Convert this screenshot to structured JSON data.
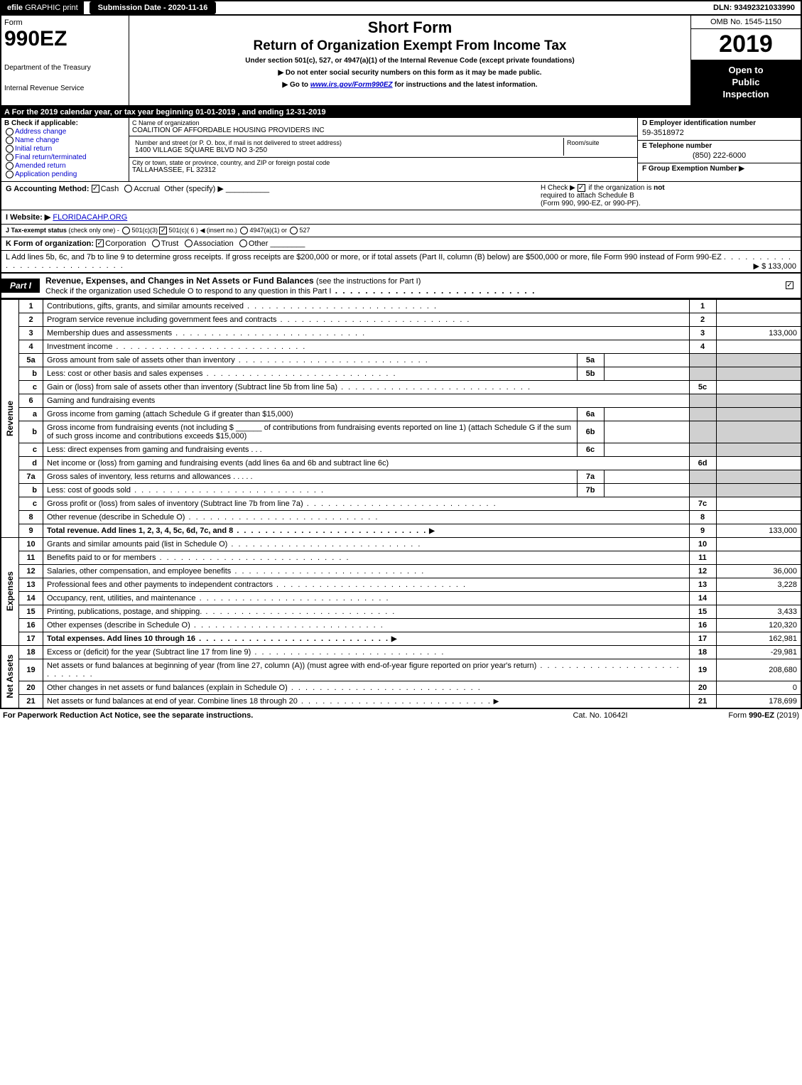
{
  "top": {
    "efile_prefix": "efile",
    "efile_rest": " GRAPHIC print",
    "submission": "Submission Date - 2020-11-16",
    "dln": "DLN: 93492321033990"
  },
  "header": {
    "form_word": "Form",
    "form_num": "990EZ",
    "dept1": "Department of the Treasury",
    "dept2": "Internal Revenue Service",
    "title1": "Short Form",
    "title2": "Return of Organization Exempt From Income Tax",
    "sub1": "Under section 501(c), 527, or 4947(a)(1) of the Internal Revenue Code (except private foundations)",
    "sub2": "▶ Do not enter social security numbers on this form as it may be made public.",
    "sub3_pre": "▶ Go to ",
    "sub3_link": "www.irs.gov/Form990EZ",
    "sub3_post": " for instructions and the latest information.",
    "omb": "OMB No. 1545-1150",
    "year": "2019",
    "open1": "Open to",
    "open2": "Public",
    "open3": "Inspection"
  },
  "A": {
    "text": "A For the 2019 calendar year, or tax year beginning 01-01-2019 , and ending 12-31-2019"
  },
  "B": {
    "label": "B Check if applicable:",
    "opts": [
      "Address change",
      "Name change",
      "Initial return",
      "Final return/terminated",
      "Amended return",
      "Application pending"
    ]
  },
  "C": {
    "name_lbl": "C Name of organization",
    "name": "COALITION OF AFFORDABLE HOUSING PROVIDERS INC",
    "addr_lbl": "Number and street (or P. O. box, if mail is not delivered to street address)",
    "room_lbl": "Room/suite",
    "addr": "1400 VILLAGE SQUARE BLVD NO 3-250",
    "city_lbl": "City or town, state or province, country, and ZIP or foreign postal code",
    "city": "TALLAHASSEE, FL  32312"
  },
  "D": {
    "ein_lbl": "D Employer identification number",
    "ein": "59-3518972",
    "phone_lbl": "E Telephone number",
    "phone": "(850) 222-6000",
    "group_lbl": "F Group Exemption Number  ▶"
  },
  "G": {
    "label": "G Accounting Method:",
    "cash": "Cash",
    "accrual": "Accrual",
    "other": "Other (specify) ▶"
  },
  "H": {
    "pre": "H  Check ▶ ",
    "post": " if the organization is ",
    "not": "not",
    "line2": "required to attach Schedule B",
    "line3": "(Form 990, 990-EZ, or 990-PF)."
  },
  "I": {
    "label": "I Website: ▶",
    "url": "FLORIDACAHP.ORG"
  },
  "J": {
    "label": "J Tax-exempt status",
    "sub": "(check only one) -",
    "o1": "501(c)(3)",
    "o2": "501(c)( 6 ) ◀ (insert no.)",
    "o3": "4947(a)(1) or",
    "o4": "527"
  },
  "K": {
    "label": "K Form of organization:",
    "o1": "Corporation",
    "o2": "Trust",
    "o3": "Association",
    "o4": "Other"
  },
  "L": {
    "text": "L Add lines 5b, 6c, and 7b to line 9 to determine gross receipts. If gross receipts are $200,000 or more, or if total assets (Part II, column (B) below) are $500,000 or more, file Form 990 instead of Form 990-EZ",
    "amount": "▶ $ 133,000"
  },
  "part1": {
    "label": "Part I",
    "title": "Revenue, Expenses, and Changes in Net Assets or Fund Balances",
    "sub": "(see the instructions for Part I)",
    "check_line": "Check if the organization used Schedule O to respond to any question in this Part I"
  },
  "side": {
    "revenue": "Revenue",
    "expenses": "Expenses",
    "netassets": "Net Assets"
  },
  "lines": {
    "1": {
      "n": "1",
      "d": "Contributions, gifts, grants, and similar amounts received",
      "r": "1",
      "v": ""
    },
    "2": {
      "n": "2",
      "d": "Program service revenue including government fees and contracts",
      "r": "2",
      "v": ""
    },
    "3": {
      "n": "3",
      "d": "Membership dues and assessments",
      "r": "3",
      "v": "133,000"
    },
    "4": {
      "n": "4",
      "d": "Investment income",
      "r": "4",
      "v": ""
    },
    "5a": {
      "n": "5a",
      "d": "Gross amount from sale of assets other than inventory",
      "m": "5a"
    },
    "5b": {
      "n": "b",
      "d": "Less: cost or other basis and sales expenses",
      "m": "5b"
    },
    "5c": {
      "n": "c",
      "d": "Gain or (loss) from sale of assets other than inventory (Subtract line 5b from line 5a)",
      "r": "5c",
      "v": ""
    },
    "6": {
      "n": "6",
      "d": "Gaming and fundraising events"
    },
    "6a": {
      "n": "a",
      "d": "Gross income from gaming (attach Schedule G if greater than $15,000)",
      "m": "6a"
    },
    "6b": {
      "n": "b",
      "d": "Gross income from fundraising events (not including $ ______ of contributions from fundraising events reported on line 1) (attach Schedule G if the sum of such gross income and contributions exceeds $15,000)",
      "m": "6b"
    },
    "6c": {
      "n": "c",
      "d": "Less: direct expenses from gaming and fundraising events",
      "m": "6c"
    },
    "6d": {
      "n": "d",
      "d": "Net income or (loss) from gaming and fundraising events (add lines 6a and 6b and subtract line 6c)",
      "r": "6d",
      "v": ""
    },
    "7a": {
      "n": "7a",
      "d": "Gross sales of inventory, less returns and allowances",
      "m": "7a"
    },
    "7b": {
      "n": "b",
      "d": "Less: cost of goods sold",
      "m": "7b"
    },
    "7c": {
      "n": "c",
      "d": "Gross profit or (loss) from sales of inventory (Subtract line 7b from line 7a)",
      "r": "7c",
      "v": ""
    },
    "8": {
      "n": "8",
      "d": "Other revenue (describe in Schedule O)",
      "r": "8",
      "v": ""
    },
    "9": {
      "n": "9",
      "d": "Total revenue. Add lines 1, 2, 3, 4, 5c, 6d, 7c, and 8",
      "r": "9",
      "v": "133,000",
      "bold": true,
      "arrow": true
    },
    "10": {
      "n": "10",
      "d": "Grants and similar amounts paid (list in Schedule O)",
      "r": "10",
      "v": ""
    },
    "11": {
      "n": "11",
      "d": "Benefits paid to or for members",
      "r": "11",
      "v": ""
    },
    "12": {
      "n": "12",
      "d": "Salaries, other compensation, and employee benefits",
      "r": "12",
      "v": "36,000"
    },
    "13": {
      "n": "13",
      "d": "Professional fees and other payments to independent contractors",
      "r": "13",
      "v": "3,228"
    },
    "14": {
      "n": "14",
      "d": "Occupancy, rent, utilities, and maintenance",
      "r": "14",
      "v": ""
    },
    "15": {
      "n": "15",
      "d": "Printing, publications, postage, and shipping.",
      "r": "15",
      "v": "3,433"
    },
    "16": {
      "n": "16",
      "d": "Other expenses (describe in Schedule O)",
      "r": "16",
      "v": "120,320"
    },
    "17": {
      "n": "17",
      "d": "Total expenses. Add lines 10 through 16",
      "r": "17",
      "v": "162,981",
      "bold": true,
      "arrow": true
    },
    "18": {
      "n": "18",
      "d": "Excess or (deficit) for the year (Subtract line 17 from line 9)",
      "r": "18",
      "v": "-29,981"
    },
    "19": {
      "n": "19",
      "d": "Net assets or fund balances at beginning of year (from line 27, column (A)) (must agree with end-of-year figure reported on prior year's return)",
      "r": "19",
      "v": "208,680"
    },
    "20": {
      "n": "20",
      "d": "Other changes in net assets or fund balances (explain in Schedule O)",
      "r": "20",
      "v": "0"
    },
    "21": {
      "n": "21",
      "d": "Net assets or fund balances at end of year. Combine lines 18 through 20",
      "r": "21",
      "v": "178,699",
      "arrow": true
    }
  },
  "footer": {
    "left": "For Paperwork Reduction Act Notice, see the separate instructions.",
    "mid": "Cat. No. 10642I",
    "right_pre": "Form ",
    "right_bold": "990-EZ",
    "right_post": " (2019)"
  }
}
